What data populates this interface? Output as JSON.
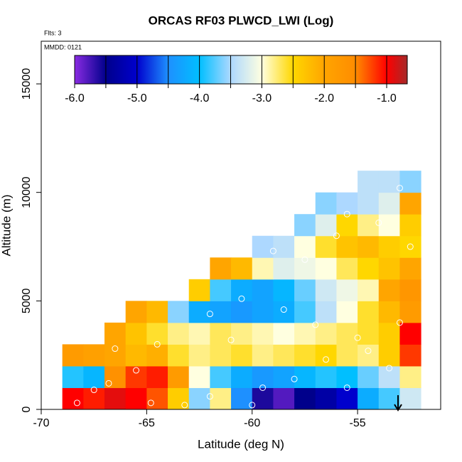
{
  "chart_data": {
    "type": "heatmap",
    "title": "ORCAS RF03 PLWCD_LWI (Log)",
    "notes": [
      "Flts: 3",
      "MMDD: 0121"
    ],
    "x_label": "Latitude (deg N)",
    "y_label": "Altitude (m)",
    "xlim": [
      -70,
      -51.06
    ],
    "ylim": [
      0,
      16966
    ],
    "xticks": [
      -70,
      -65,
      -60,
      -55
    ],
    "yticks": [
      0,
      5000,
      10000,
      15000
    ],
    "x_edges": [
      -69,
      -68,
      -67,
      -66,
      -65,
      -64,
      -63,
      -62,
      -61,
      -60,
      -59,
      -58,
      -57,
      -56,
      -55,
      -54,
      -53,
      -52
    ],
    "y_edges": [
      0,
      1000,
      2000,
      3000,
      4000,
      5000,
      6000,
      7000,
      8000,
      9000,
      10000,
      11000
    ],
    "values": [
      [
        -1.0,
        -1.1,
        -0.9,
        -1.0,
        -1.3,
        -2.4,
        -3.6,
        -2.8,
        -4.5,
        -5.6,
        -5.8,
        -5.5,
        -5.3,
        -5.0,
        -4.2,
        -3.8,
        -3.3
      ],
      [
        -3.9,
        -4.1,
        -1.6,
        -1.2,
        -1.1,
        -1.8,
        -3.0,
        -3.8,
        -4.2,
        -4.4,
        -4.3,
        -4.1,
        -3.9,
        -4.0,
        -3.7,
        -3.4,
        -2.8
      ],
      [
        -1.8,
        -1.9,
        -2.0,
        -2.2,
        -2.1,
        -2.6,
        -2.8,
        -2.7,
        -2.6,
        -2.8,
        -2.7,
        -2.6,
        -2.5,
        -2.7,
        -2.8,
        -2.4,
        -1.2
      ],
      [
        null,
        null,
        -2.0,
        -2.3,
        -2.6,
        -2.8,
        -2.9,
        -2.7,
        -2.8,
        -2.9,
        -3.0,
        -2.9,
        -2.8,
        -2.7,
        -2.6,
        -2.4,
        -1.0
      ],
      [
        null,
        null,
        null,
        -2.0,
        -2.2,
        -3.6,
        -4.2,
        -4.3,
        -4.4,
        -4.3,
        -4.2,
        -3.8,
        -3.4,
        -3.0,
        -2.6,
        -2.2,
        -1.8
      ],
      [
        null,
        null,
        null,
        null,
        null,
        null,
        -2.4,
        -3.8,
        -4.2,
        -4.3,
        -4.1,
        -3.7,
        -3.3,
        -3.1,
        -2.9,
        -2.0,
        -1.7
      ],
      [
        null,
        null,
        null,
        null,
        null,
        null,
        null,
        -2.0,
        -2.2,
        -2.9,
        -3.2,
        -3.1,
        -3.0,
        -2.7,
        -2.5,
        -2.3,
        -2.0
      ],
      [
        null,
        null,
        null,
        null,
        null,
        null,
        null,
        null,
        null,
        -3.5,
        -3.4,
        -3.0,
        -2.6,
        -2.3,
        -2.2,
        -2.4,
        -2.5
      ],
      [
        null,
        null,
        null,
        null,
        null,
        null,
        null,
        null,
        null,
        null,
        null,
        -3.6,
        -3.2,
        -2.5,
        -2.8,
        -3.0,
        -2.4
      ],
      [
        null,
        null,
        null,
        null,
        null,
        null,
        null,
        null,
        null,
        null,
        null,
        null,
        -3.6,
        -3.5,
        -3.4,
        -3.2,
        -2.0
      ],
      [
        null,
        null,
        null,
        null,
        null,
        null,
        null,
        null,
        null,
        null,
        null,
        null,
        null,
        null,
        -3.4,
        -3.4,
        -3.6
      ]
    ],
    "points": {
      "x": [
        -68.3,
        -67.5,
        -66.8,
        -65.5,
        -64.8,
        -63.2,
        -62,
        -60,
        -59.5,
        -58,
        -56.5,
        -55.5,
        -54.5,
        -53.5,
        -53,
        -55,
        -57,
        -58.5,
        -60.5,
        -62,
        -64.5,
        -66.5,
        -59,
        -57.5,
        -56,
        -54,
        -55.5,
        -53,
        -52.5,
        -61
      ],
      "y": [
        300,
        900,
        1200,
        1800,
        300,
        200,
        600,
        200,
        1000,
        1400,
        2300,
        1000,
        2700,
        1900,
        4000,
        3300,
        3900,
        4600,
        5100,
        4400,
        3000,
        2800,
        7300,
        6900,
        8000,
        8600,
        9000,
        10200,
        7500,
        3200
      ],
      "color": "#ffffff"
    },
    "clim": [
      -6,
      -0.67
    ],
    "cticks": [
      {
        "value": -6,
        "label": "-6.0"
      },
      {
        "value": -5,
        "label": "-5.0"
      },
      {
        "value": -4,
        "label": "-4.0"
      },
      {
        "value": -3,
        "label": "-3.0"
      },
      {
        "value": -2,
        "label": "-2.0"
      },
      {
        "value": -1,
        "label": "-1.0"
      }
    ],
    "colorscale": [
      {
        "value": -6,
        "color": "#8a2be2"
      },
      {
        "value": -5.5,
        "color": "#00008b"
      },
      {
        "value": -5,
        "color": "#0000cd"
      },
      {
        "value": -4.5,
        "color": "#1e90ff"
      },
      {
        "value": -4,
        "color": "#00bfff"
      },
      {
        "value": -3.5,
        "color": "#add8ff"
      },
      {
        "value": -3,
        "color": "#ffffe0"
      },
      {
        "value": -2.5,
        "color": "#ffd700"
      },
      {
        "value": -2,
        "color": "#ffa500"
      },
      {
        "value": -1.5,
        "color": "#ff8c00"
      },
      {
        "value": -1,
        "color": "#ff0000"
      },
      {
        "value": -0.67,
        "color": "#a52a2a"
      }
    ]
  }
}
